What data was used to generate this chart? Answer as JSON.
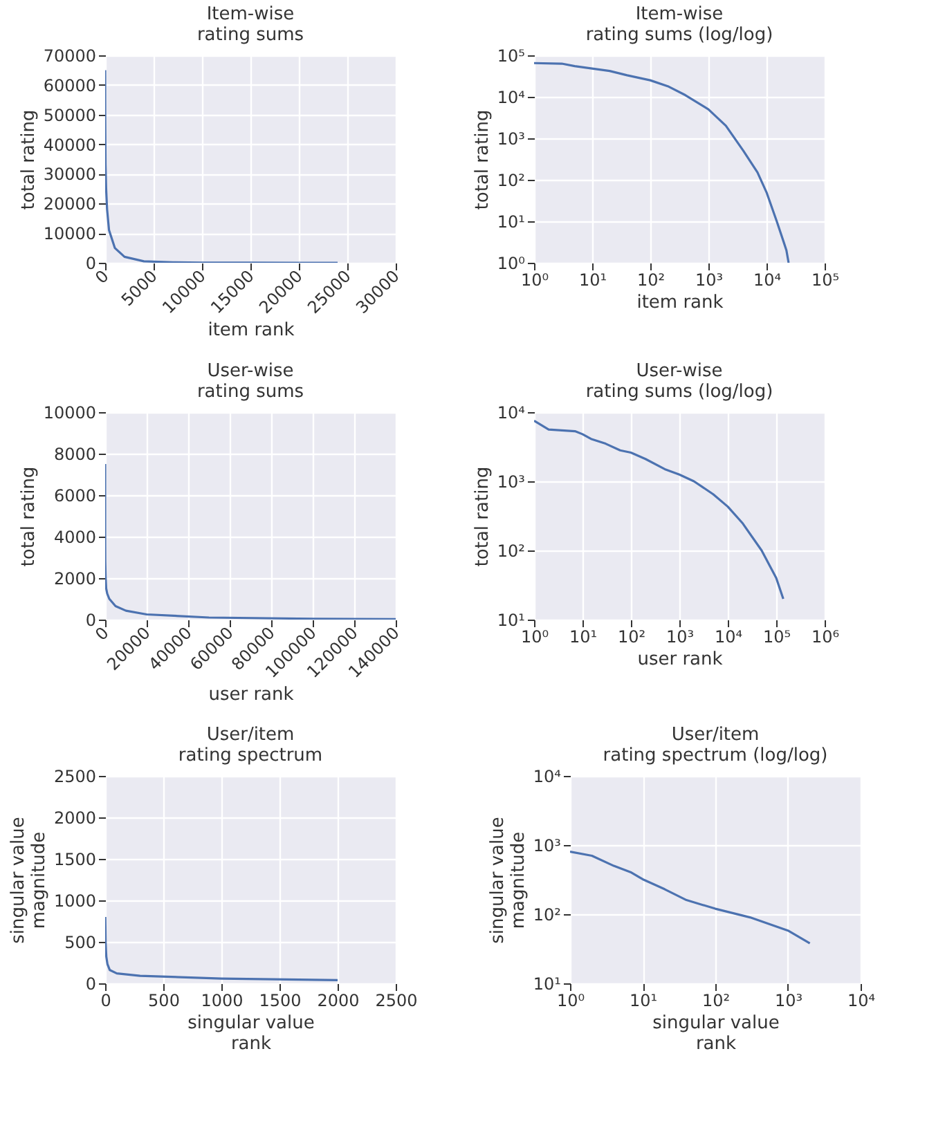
{
  "chart_data": [
    {
      "type": "line",
      "title": "Item-wise\nrating sums",
      "xlabel": "item rank",
      "ylabel": "total rating",
      "xlim": [
        0,
        30000
      ],
      "ylim": [
        0,
        70000
      ],
      "xticks": [
        0,
        5000,
        10000,
        15000,
        20000,
        25000,
        30000
      ],
      "yticks": [
        0,
        10000,
        20000,
        30000,
        40000,
        50000,
        60000,
        70000
      ],
      "grid": true,
      "series": [
        {
          "color": "#4c72b0",
          "x": [
            1,
            3,
            5,
            10,
            20,
            40,
            100,
            200,
            400,
            1000,
            2000,
            4000,
            7000,
            10000,
            15000,
            20000,
            22000,
            24000
          ],
          "values": [
            65000,
            63000,
            55000,
            48000,
            42000,
            33000,
            25000,
            18000,
            11000,
            5000,
            2000,
            500,
            150,
            50,
            10,
            3,
            2,
            1
          ]
        }
      ]
    },
    {
      "type": "line",
      "title": "Item-wise\nrating sums (log/log)",
      "xlabel": "item rank",
      "ylabel": "total rating",
      "log": "xy",
      "xlim": [
        1,
        100000
      ],
      "ylim": [
        1,
        100000
      ],
      "xticks": [
        {
          "value": 1,
          "label": "10⁰"
        },
        {
          "value": 10,
          "label": "10¹"
        },
        {
          "value": 100,
          "label": "10²"
        },
        {
          "value": 1000,
          "label": "10³"
        },
        {
          "value": 10000,
          "label": "10⁴"
        },
        {
          "value": 100000,
          "label": "10⁵"
        }
      ],
      "yticks": [
        {
          "value": 1,
          "label": "10⁰"
        },
        {
          "value": 10,
          "label": "10¹"
        },
        {
          "value": 100,
          "label": "10²"
        },
        {
          "value": 1000,
          "label": "10³"
        },
        {
          "value": 10000,
          "label": "10⁴"
        },
        {
          "value": 100000,
          "label": "10⁵"
        }
      ],
      "grid": true,
      "series": [
        {
          "color": "#4c72b0",
          "x": [
            1,
            3,
            5,
            10,
            20,
            40,
            100,
            200,
            400,
            1000,
            2000,
            4000,
            7000,
            10000,
            15000,
            20000,
            22000,
            24000
          ],
          "values": [
            65000,
            63000,
            55000,
            48000,
            42000,
            33000,
            25000,
            18000,
            11000,
            5000,
            2000,
            500,
            150,
            50,
            10,
            3,
            2,
            1
          ]
        }
      ]
    },
    {
      "type": "line",
      "title": "User-wise\nrating sums",
      "xlabel": "user rank",
      "ylabel": "total rating",
      "xlim": [
        0,
        140000
      ],
      "ylim": [
        0,
        10000
      ],
      "xticks": [
        0,
        20000,
        40000,
        60000,
        80000,
        100000,
        120000,
        140000
      ],
      "yticks": [
        0,
        2000,
        4000,
        6000,
        8000,
        10000
      ],
      "grid": true,
      "series": [
        {
          "color": "#4c72b0",
          "x": [
            1,
            2,
            7,
            10,
            15,
            30,
            60,
            100,
            200,
            500,
            1000,
            2000,
            5000,
            10000,
            20000,
            50000,
            100000,
            140000
          ],
          "values": [
            7500,
            5600,
            5300,
            4800,
            4100,
            3500,
            2800,
            2600,
            2100,
            1500,
            1250,
            1000,
            650,
            430,
            250,
            100,
            40,
            20
          ]
        }
      ]
    },
    {
      "type": "line",
      "title": "User-wise\nrating sums (log/log)",
      "xlabel": "user rank",
      "ylabel": "total rating",
      "log": "xy",
      "xlim": [
        1,
        1000000
      ],
      "ylim": [
        10,
        10000
      ],
      "xticks": [
        {
          "value": 1,
          "label": "10⁰"
        },
        {
          "value": 10,
          "label": "10¹"
        },
        {
          "value": 100,
          "label": "10²"
        },
        {
          "value": 1000,
          "label": "10³"
        },
        {
          "value": 10000,
          "label": "10⁴"
        },
        {
          "value": 100000,
          "label": "10⁵"
        },
        {
          "value": 1000000,
          "label": "10⁶"
        }
      ],
      "yticks": [
        {
          "value": 10,
          "label": "10¹"
        },
        {
          "value": 100,
          "label": "10²"
        },
        {
          "value": 1000,
          "label": "10³"
        },
        {
          "value": 10000,
          "label": "10⁴"
        }
      ],
      "grid": true,
      "series": [
        {
          "color": "#4c72b0",
          "x": [
            1,
            2,
            7,
            10,
            15,
            30,
            60,
            100,
            200,
            500,
            1000,
            2000,
            5000,
            10000,
            20000,
            50000,
            100000,
            140000
          ],
          "values": [
            7500,
            5600,
            5300,
            4800,
            4100,
            3500,
            2800,
            2600,
            2100,
            1500,
            1250,
            1000,
            650,
            430,
            250,
            100,
            40,
            20
          ]
        }
      ]
    },
    {
      "type": "line",
      "title": "User/item\nrating spectrum",
      "xlabel": "singular value\nrank",
      "ylabel": "singular value\nmagnitude",
      "xlim": [
        0,
        2500
      ],
      "ylim": [
        0,
        2500
      ],
      "xticks": [
        0,
        500,
        1000,
        1500,
        2000,
        2500
      ],
      "yticks": [
        0,
        500,
        1000,
        1500,
        2000,
        2500
      ],
      "grid": true,
      "series": [
        {
          "color": "#4c72b0",
          "x": [
            1,
            2,
            4,
            7,
            10,
            20,
            40,
            100,
            300,
            1000,
            2000
          ],
          "values": [
            800,
            700,
            500,
            400,
            320,
            230,
            160,
            120,
            90,
            58,
            38
          ]
        }
      ]
    },
    {
      "type": "line",
      "title": "User/item\nrating spectrum (log/log)",
      "xlabel": "singular value\nrank",
      "ylabel": "singular value\nmagnitude",
      "log": "xy",
      "xlim": [
        1,
        10000
      ],
      "ylim": [
        10,
        10000
      ],
      "xticks": [
        {
          "value": 1,
          "label": "10⁰"
        },
        {
          "value": 10,
          "label": "10¹"
        },
        {
          "value": 100,
          "label": "10²"
        },
        {
          "value": 1000,
          "label": "10³"
        },
        {
          "value": 10000,
          "label": "10⁴"
        }
      ],
      "yticks": [
        {
          "value": 10,
          "label": "10¹"
        },
        {
          "value": 100,
          "label": "10²"
        },
        {
          "value": 1000,
          "label": "10³"
        },
        {
          "value": 10000,
          "label": "10⁴"
        }
      ],
      "grid": true,
      "series": [
        {
          "color": "#4c72b0",
          "x": [
            1,
            2,
            4,
            7,
            10,
            20,
            40,
            100,
            300,
            1000,
            2000
          ],
          "values": [
            800,
            700,
            500,
            400,
            320,
            230,
            160,
            120,
            90,
            58,
            38
          ]
        }
      ]
    }
  ]
}
